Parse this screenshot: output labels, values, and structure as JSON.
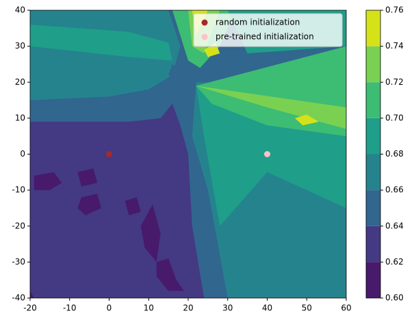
{
  "chart_data": {
    "type": "contour",
    "xlim": [
      -20,
      60
    ],
    "ylim": [
      -40,
      40
    ],
    "xticks": [
      -20,
      -10,
      0,
      10,
      20,
      30,
      40,
      50,
      60
    ],
    "yticks": [
      -40,
      -30,
      -20,
      -10,
      0,
      10,
      20,
      30,
      40
    ],
    "levels": [
      {
        "value": 0.6,
        "label": "0.60"
      },
      0.62,
      0.64,
      0.66,
      0.68,
      {
        "value": 0.7,
        "label": "0.70"
      },
      0.72,
      0.74,
      0.76
    ],
    "colors": [
      "#481a6c",
      "#443983",
      "#31668e",
      "#25838e",
      "#1f9e89",
      "#3dbc74",
      "#7ad151",
      "#d5e21a"
    ],
    "legend": "upper right",
    "series": [
      {
        "name": "random initialization",
        "color": "#a52a2a",
        "x": [
          0
        ],
        "y": [
          0
        ]
      },
      {
        "name": "pre-trained initialization",
        "color": "#ffc0cb",
        "x": [
          40
        ],
        "y": [
          0
        ]
      }
    ]
  }
}
